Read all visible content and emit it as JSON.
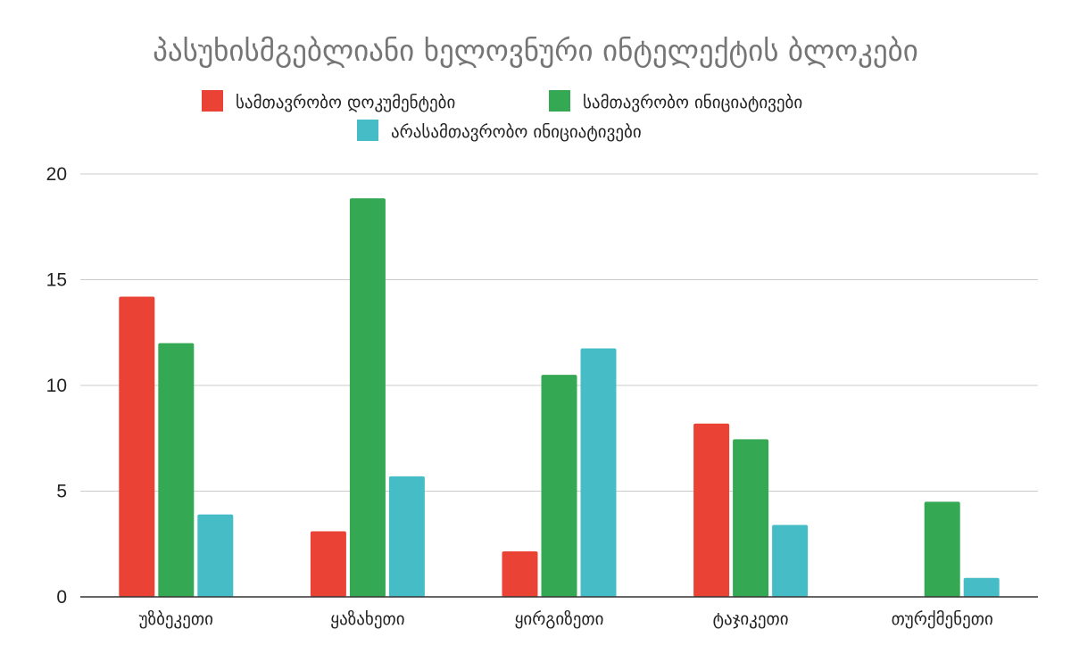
{
  "chart_data": {
    "type": "bar",
    "title": "პასუხისმგებლიანი ხელოვნური ინტელექტის ბლოკები",
    "categories": [
      "უზბეკეთი",
      "ყაზახეთი",
      "ყირგიზეთი",
      "ტაჯიკეთი",
      "თურქმენეთი"
    ],
    "series": [
      {
        "name": "სამთავრობო დოკუმენტები",
        "color": "#ea4335",
        "values": [
          14.2,
          3.1,
          2.15,
          8.2,
          0
        ]
      },
      {
        "name": "სამთავრობო ინიციატივები",
        "color": "#34a853",
        "values": [
          12.0,
          18.85,
          10.5,
          7.45,
          4.5
        ]
      },
      {
        "name": "არასამთავრობო ინიციატივები",
        "color": "#46bdc6",
        "values": [
          3.9,
          5.7,
          11.75,
          3.4,
          0.9
        ]
      }
    ],
    "ylim": [
      0,
      20
    ],
    "yticks": [
      0,
      5,
      10,
      15,
      20
    ],
    "grid": true,
    "legend_position": "top"
  }
}
